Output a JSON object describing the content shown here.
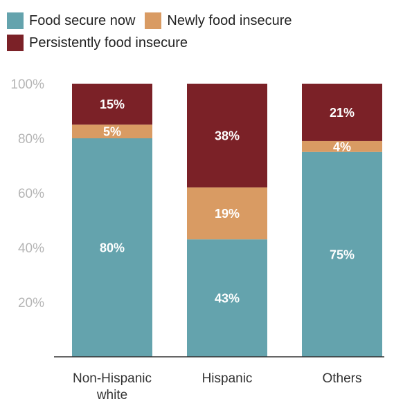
{
  "colors": {
    "food_secure_now": "#64a3ad",
    "newly_food_insecure": "#d99b63",
    "persistently_food_insecure": "#7b2127",
    "axis_text": "#b5b5b5",
    "category_text": "#333333",
    "bar_label": "#ffffff",
    "baseline": "#333333"
  },
  "chart_data": {
    "type": "bar",
    "stacked": true,
    "categories": [
      "Non-Hispanic white",
      "Hispanic",
      "Others"
    ],
    "category_lines": [
      [
        "Non-Hispanic",
        "white"
      ],
      [
        "Hispanic"
      ],
      [
        "Others"
      ]
    ],
    "series": [
      {
        "name": "Food secure now",
        "values": [
          80,
          43,
          75
        ],
        "labels": [
          "80%",
          "43%",
          "75%"
        ]
      },
      {
        "name": "Newly food insecure",
        "values": [
          5,
          19,
          4
        ],
        "labels": [
          "5%",
          "19%",
          "4%"
        ]
      },
      {
        "name": "Persistently food insecure",
        "values": [
          15,
          38,
          21
        ],
        "labels": [
          "15%",
          "38%",
          "21%"
        ]
      }
    ],
    "ylim": [
      0,
      100
    ],
    "yticks": [
      20,
      40,
      60,
      80,
      100
    ],
    "ytick_labels": [
      "20%",
      "40%",
      "60%",
      "80%",
      "100%"
    ],
    "grid": false,
    "legend_position": "top-left",
    "title": "",
    "xlabel": "",
    "ylabel": ""
  }
}
